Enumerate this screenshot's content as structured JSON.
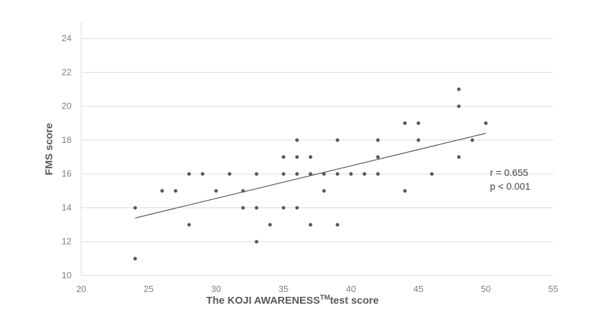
{
  "chart_data": {
    "type": "scatter",
    "title": "",
    "xlabel": "The KOJI AWARENESS™ test score",
    "xlabel_main": "The KOJI AWARENESS",
    "xlabel_sup": "TM",
    "xlabel_tail": "test score",
    "ylabel": "FMS score",
    "xlim": [
      20,
      55
    ],
    "ylim": [
      10,
      24
    ],
    "x_ticks": [
      20,
      25,
      30,
      35,
      40,
      45,
      50,
      55
    ],
    "y_ticks": [
      10,
      12,
      14,
      16,
      18,
      20,
      22,
      24
    ],
    "grid": "horizontal",
    "legend": "none",
    "marker_color": "#595959",
    "trendline_color": "#595959",
    "grid_color": "#d9d9d9",
    "points": [
      {
        "x": 24,
        "y": 14
      },
      {
        "x": 24,
        "y": 11
      },
      {
        "x": 26,
        "y": 15
      },
      {
        "x": 27,
        "y": 15
      },
      {
        "x": 28,
        "y": 16
      },
      {
        "x": 28,
        "y": 13
      },
      {
        "x": 29,
        "y": 16
      },
      {
        "x": 30,
        "y": 15
      },
      {
        "x": 31,
        "y": 16
      },
      {
        "x": 32,
        "y": 15
      },
      {
        "x": 32,
        "y": 14
      },
      {
        "x": 33,
        "y": 16
      },
      {
        "x": 33,
        "y": 14
      },
      {
        "x": 33,
        "y": 12
      },
      {
        "x": 34,
        "y": 13
      },
      {
        "x": 35,
        "y": 17
      },
      {
        "x": 35,
        "y": 16
      },
      {
        "x": 35,
        "y": 14
      },
      {
        "x": 36,
        "y": 18
      },
      {
        "x": 36,
        "y": 17
      },
      {
        "x": 36,
        "y": 16
      },
      {
        "x": 36,
        "y": 14
      },
      {
        "x": 37,
        "y": 17
      },
      {
        "x": 37,
        "y": 16
      },
      {
        "x": 37,
        "y": 13
      },
      {
        "x": 38,
        "y": 16
      },
      {
        "x": 38,
        "y": 15
      },
      {
        "x": 39,
        "y": 18
      },
      {
        "x": 39,
        "y": 16
      },
      {
        "x": 39,
        "y": 13
      },
      {
        "x": 40,
        "y": 16
      },
      {
        "x": 41,
        "y": 16
      },
      {
        "x": 42,
        "y": 18
      },
      {
        "x": 42,
        "y": 17
      },
      {
        "x": 42,
        "y": 16
      },
      {
        "x": 44,
        "y": 19
      },
      {
        "x": 44,
        "y": 15
      },
      {
        "x": 45,
        "y": 19
      },
      {
        "x": 45,
        "y": 18
      },
      {
        "x": 46,
        "y": 16
      },
      {
        "x": 48,
        "y": 21
      },
      {
        "x": 48,
        "y": 20
      },
      {
        "x": 48,
        "y": 17
      },
      {
        "x": 49,
        "y": 18
      },
      {
        "x": 50,
        "y": 19
      }
    ],
    "trendline": {
      "x1": 24,
      "y1": 13.4,
      "x2": 50,
      "y2": 18.4
    },
    "annotations": [
      "r = 0.655",
      "p < 0.001"
    ]
  }
}
